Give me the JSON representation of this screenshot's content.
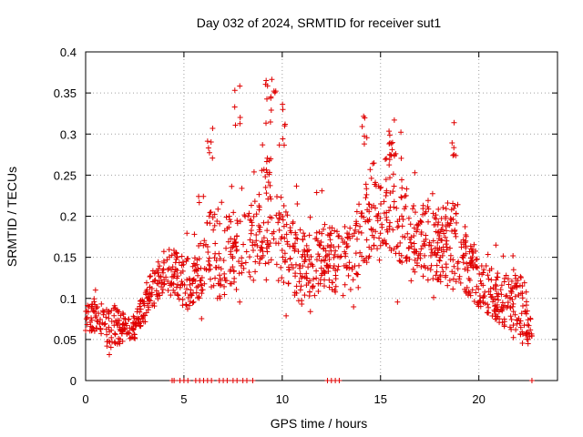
{
  "chart_data": {
    "type": "scatter",
    "title": "Day 032 of 2024, SRMTID for receiver sut1",
    "xlabel": "GPS time / hours",
    "ylabel": "SRMTID / TECUs",
    "xlim": [
      0,
      24
    ],
    "ylim": [
      0,
      0.4
    ],
    "xticks": [
      0,
      5,
      10,
      15,
      20
    ],
    "yticks": [
      0,
      0.05,
      0.1,
      0.15,
      0.2,
      0.25,
      0.3,
      0.35,
      0.4
    ],
    "grid": true,
    "marker": "+",
    "color": "#e00000",
    "envelope": {
      "description": "approximate distribution of the scatter points (hour, typical_low, typical_high)",
      "hours": [
        0,
        0.5,
        1,
        1.5,
        2,
        2.5,
        3,
        3.5,
        4,
        4.5,
        5,
        5.5,
        6,
        6.5,
        7,
        7.5,
        8,
        8.5,
        9,
        9.5,
        10,
        10.5,
        11,
        11.5,
        12,
        12.5,
        13,
        13.5,
        14,
        14.5,
        15,
        15.5,
        16,
        16.5,
        17,
        17.5,
        18,
        18.5,
        19,
        19.5,
        20,
        20.5,
        21,
        21.5,
        22,
        22.5,
        22.7
      ],
      "low": [
        0.06,
        0.06,
        0.04,
        0.04,
        0.05,
        0.05,
        0.07,
        0.09,
        0.11,
        0.1,
        0.09,
        0.09,
        0.1,
        0.1,
        0.1,
        0.11,
        0.11,
        0.12,
        0.14,
        0.14,
        0.12,
        0.1,
        0.09,
        0.1,
        0.11,
        0.11,
        0.1,
        0.11,
        0.13,
        0.15,
        0.16,
        0.16,
        0.14,
        0.13,
        0.13,
        0.12,
        0.12,
        0.11,
        0.11,
        0.1,
        0.09,
        0.08,
        0.07,
        0.06,
        0.06,
        0.04,
        0.04
      ],
      "high": [
        0.1,
        0.1,
        0.09,
        0.09,
        0.08,
        0.08,
        0.11,
        0.14,
        0.16,
        0.16,
        0.15,
        0.15,
        0.2,
        0.22,
        0.2,
        0.2,
        0.2,
        0.22,
        0.26,
        0.28,
        0.22,
        0.2,
        0.18,
        0.18,
        0.19,
        0.19,
        0.18,
        0.2,
        0.22,
        0.26,
        0.28,
        0.3,
        0.26,
        0.22,
        0.22,
        0.22,
        0.21,
        0.22,
        0.22,
        0.18,
        0.15,
        0.14,
        0.13,
        0.13,
        0.14,
        0.09,
        0.07
      ]
    },
    "peaks": [
      {
        "hour": 6.3,
        "value": 0.31
      },
      {
        "hour": 7.7,
        "value": 0.36
      },
      {
        "hour": 9.3,
        "value": 0.37
      },
      {
        "hour": 9.5,
        "value": 0.38
      },
      {
        "hour": 10.0,
        "value": 0.34
      },
      {
        "hour": 14.2,
        "value": 0.33
      },
      {
        "hour": 15.6,
        "value": 0.32
      },
      {
        "hour": 18.7,
        "value": 0.32
      }
    ],
    "zero_points_hours": [
      4.4,
      4.5,
      4.8,
      5.0,
      5.2,
      5.6,
      5.8,
      6.0,
      6.2,
      6.4,
      6.8,
      7.0,
      7.2,
      7.5,
      7.7,
      8.0,
      8.2,
      8.5,
      12.3,
      12.5,
      12.7,
      12.9,
      22.7
    ]
  }
}
